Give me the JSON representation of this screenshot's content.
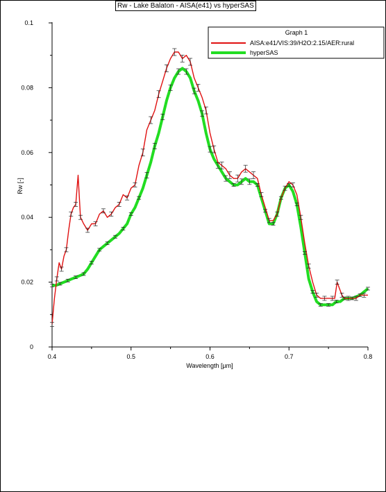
{
  "chart_data": {
    "type": "line",
    "title": "Rw - Lake Balaton - AISA(e41) vs hyperSAS",
    "xlabel": "Wavelength [µm]",
    "ylabel": "Rw [-]",
    "xlim": [
      0.4,
      0.8
    ],
    "ylim": [
      0,
      0.1
    ],
    "xticks": [
      "0.4",
      "0.5",
      "0.6",
      "0.7",
      "0.8"
    ],
    "yticks": [
      "0",
      "0.02",
      "0.04",
      "0.06",
      "0.08",
      "0.1"
    ],
    "grid": false,
    "legend": {
      "title": "Graph 1",
      "position": "top-right"
    },
    "series": [
      {
        "name": "AISA:e41/VIS:39/H2O:2.15/AER:rural",
        "color": "#e01010",
        "x": [
          0.4,
          0.403,
          0.406,
          0.409,
          0.412,
          0.415,
          0.418,
          0.421,
          0.424,
          0.427,
          0.43,
          0.433,
          0.436,
          0.44,
          0.445,
          0.45,
          0.455,
          0.46,
          0.465,
          0.47,
          0.475,
          0.48,
          0.485,
          0.49,
          0.495,
          0.5,
          0.505,
          0.51,
          0.515,
          0.52,
          0.525,
          0.53,
          0.535,
          0.54,
          0.545,
          0.55,
          0.555,
          0.56,
          0.565,
          0.57,
          0.575,
          0.58,
          0.585,
          0.59,
          0.595,
          0.6,
          0.605,
          0.61,
          0.615,
          0.62,
          0.625,
          0.63,
          0.635,
          0.64,
          0.645,
          0.65,
          0.655,
          0.66,
          0.665,
          0.67,
          0.675,
          0.68,
          0.685,
          0.69,
          0.695,
          0.7,
          0.705,
          0.71,
          0.715,
          0.72,
          0.725,
          0.73,
          0.735,
          0.74,
          0.745,
          0.75,
          0.755,
          0.758,
          0.761,
          0.764,
          0.767,
          0.77,
          0.775,
          0.78,
          0.785,
          0.79,
          0.795,
          0.8
        ],
        "y": [
          0.007,
          0.015,
          0.021,
          0.026,
          0.024,
          0.028,
          0.03,
          0.036,
          0.041,
          0.043,
          0.044,
          0.053,
          0.04,
          0.038,
          0.036,
          0.038,
          0.038,
          0.041,
          0.042,
          0.04,
          0.041,
          0.043,
          0.044,
          0.047,
          0.046,
          0.049,
          0.05,
          0.056,
          0.06,
          0.067,
          0.07,
          0.073,
          0.078,
          0.082,
          0.086,
          0.089,
          0.091,
          0.091,
          0.089,
          0.09,
          0.088,
          0.083,
          0.08,
          0.077,
          0.073,
          0.066,
          0.061,
          0.057,
          0.056,
          0.055,
          0.053,
          0.052,
          0.052,
          0.054,
          0.055,
          0.054,
          0.053,
          0.052,
          0.047,
          0.043,
          0.039,
          0.039,
          0.041,
          0.046,
          0.049,
          0.051,
          0.05,
          0.047,
          0.04,
          0.032,
          0.025,
          0.02,
          0.016,
          0.015,
          0.015,
          0.015,
          0.015,
          0.015,
          0.02,
          0.018,
          0.016,
          0.015,
          0.015,
          0.015,
          0.015,
          0.016,
          0.016,
          0.016
        ]
      },
      {
        "name": "hyperSAS",
        "color": "#22dd22",
        "x": [
          0.4,
          0.405,
          0.41,
          0.415,
          0.42,
          0.425,
          0.43,
          0.435,
          0.44,
          0.445,
          0.45,
          0.455,
          0.46,
          0.465,
          0.47,
          0.475,
          0.48,
          0.485,
          0.49,
          0.495,
          0.5,
          0.505,
          0.51,
          0.515,
          0.52,
          0.525,
          0.53,
          0.535,
          0.54,
          0.545,
          0.55,
          0.555,
          0.56,
          0.565,
          0.57,
          0.575,
          0.58,
          0.585,
          0.59,
          0.595,
          0.6,
          0.605,
          0.61,
          0.615,
          0.62,
          0.625,
          0.63,
          0.635,
          0.64,
          0.645,
          0.65,
          0.655,
          0.66,
          0.665,
          0.67,
          0.675,
          0.68,
          0.685,
          0.69,
          0.695,
          0.7,
          0.705,
          0.71,
          0.715,
          0.72,
          0.725,
          0.73,
          0.735,
          0.74,
          0.745,
          0.75,
          0.755,
          0.76,
          0.765,
          0.77,
          0.775,
          0.78,
          0.785,
          0.79,
          0.795,
          0.8
        ],
        "y": [
          0.019,
          0.019,
          0.0195,
          0.02,
          0.0205,
          0.021,
          0.0215,
          0.022,
          0.0225,
          0.024,
          0.026,
          0.028,
          0.03,
          0.031,
          0.032,
          0.033,
          0.034,
          0.035,
          0.0365,
          0.038,
          0.041,
          0.043,
          0.046,
          0.049,
          0.053,
          0.057,
          0.062,
          0.066,
          0.071,
          0.076,
          0.08,
          0.083,
          0.085,
          0.086,
          0.085,
          0.083,
          0.079,
          0.076,
          0.072,
          0.066,
          0.061,
          0.058,
          0.056,
          0.054,
          0.052,
          0.051,
          0.05,
          0.05,
          0.051,
          0.052,
          0.051,
          0.051,
          0.05,
          0.046,
          0.042,
          0.038,
          0.038,
          0.041,
          0.046,
          0.049,
          0.05,
          0.048,
          0.044,
          0.037,
          0.029,
          0.021,
          0.017,
          0.014,
          0.013,
          0.013,
          0.013,
          0.013,
          0.014,
          0.014,
          0.015,
          0.015,
          0.015,
          0.0155,
          0.016,
          0.017,
          0.018
        ]
      }
    ]
  }
}
